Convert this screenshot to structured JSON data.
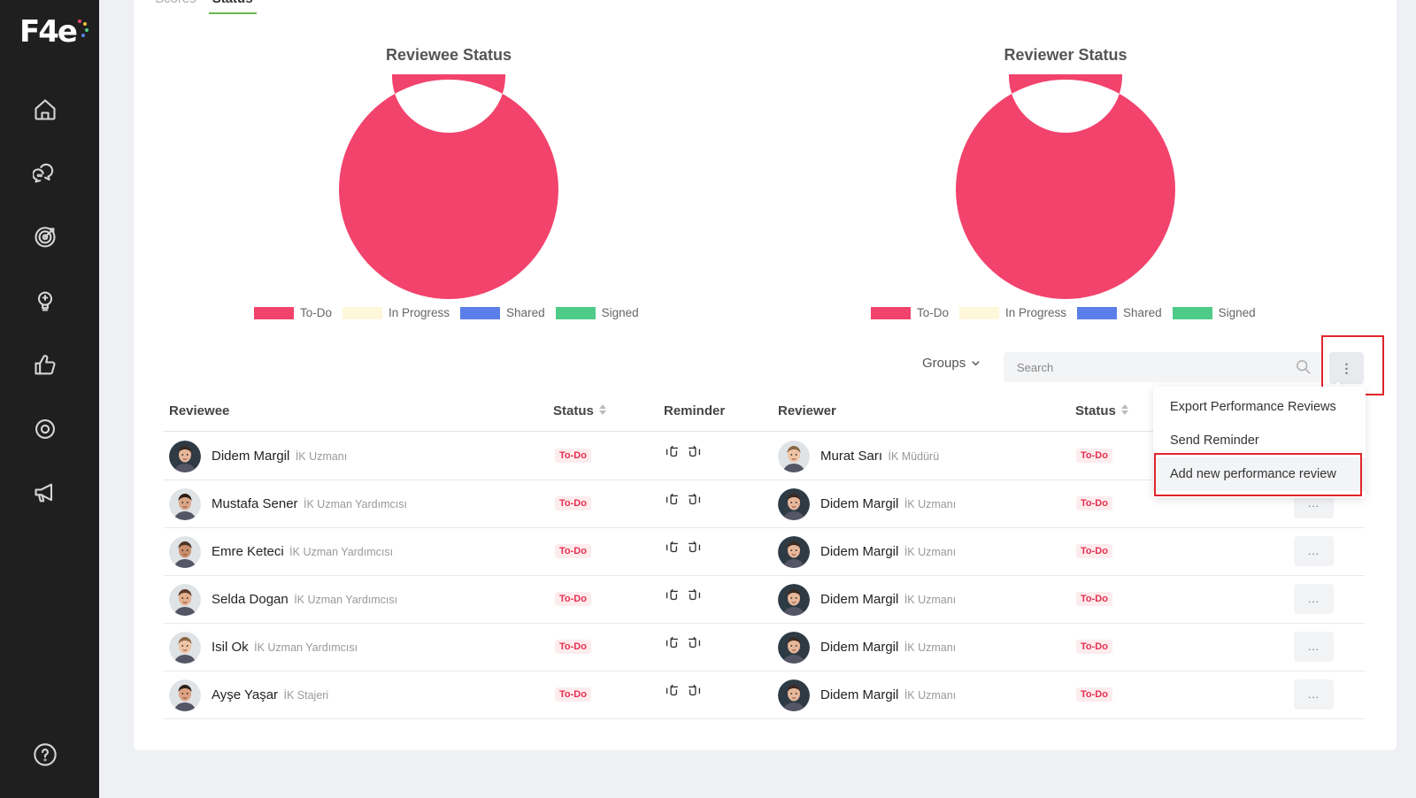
{
  "app": {
    "logo_text": "F4e"
  },
  "sidebar": {
    "items": [
      {
        "icon": "home-icon"
      },
      {
        "icon": "chat-bubbles-icon"
      },
      {
        "icon": "target-icon"
      },
      {
        "icon": "lightbulb-icon"
      },
      {
        "icon": "thumbs-up-icon"
      },
      {
        "icon": "settings-icon"
      },
      {
        "icon": "megaphone-icon"
      }
    ],
    "help_icon": "question-circle-icon"
  },
  "tabs": [
    {
      "label": "Scores",
      "active": false
    },
    {
      "label": "Status",
      "active": true
    }
  ],
  "charts": {
    "reviewee_title": "Reviewee Status",
    "reviewer_title": "Reviewer Status",
    "legend": [
      {
        "label": "To-Do",
        "color": "#f2436d"
      },
      {
        "label": "In Progress",
        "color": "#fff7d9"
      },
      {
        "label": "Shared",
        "color": "#5b7fe8"
      },
      {
        "label": "Signed",
        "color": "#4ecb86"
      }
    ]
  },
  "chart_data": [
    {
      "type": "pie",
      "title": "Reviewee Status",
      "categories": [
        "To-Do",
        "In Progress",
        "Shared",
        "Signed"
      ],
      "values": [
        6,
        0,
        0,
        0
      ]
    },
    {
      "type": "pie",
      "title": "Reviewer Status",
      "categories": [
        "To-Do",
        "In Progress",
        "Shared",
        "Signed"
      ],
      "values": [
        6,
        0,
        0,
        0
      ]
    }
  ],
  "toolbar": {
    "groups_label": "Groups",
    "search_placeholder": "Search",
    "more_label": "⋮"
  },
  "table": {
    "headers": {
      "reviewee": "Reviewee",
      "status": "Status",
      "reminder": "Reminder",
      "reviewer": "Reviewer",
      "status2": "Status"
    },
    "rows": [
      {
        "reviewee": "Didem Margil",
        "reviewee_role": "İK Uzmanı",
        "status": "To-Do",
        "reviewer": "Murat Sarı",
        "reviewer_role": "İK Müdürü",
        "reviewer_status": "To-Do",
        "more": "..."
      },
      {
        "reviewee": "Mustafa Sener",
        "reviewee_role": "İK Uzman Yardımcısı",
        "status": "To-Do",
        "reviewer": "Didem Margil",
        "reviewer_role": "İK Uzmanı",
        "reviewer_status": "To-Do",
        "more": "..."
      },
      {
        "reviewee": "Emre Keteci",
        "reviewee_role": "İK Uzman Yardımcısı",
        "status": "To-Do",
        "reviewer": "Didem Margil",
        "reviewer_role": "İK Uzmanı",
        "reviewer_status": "To-Do",
        "more": "..."
      },
      {
        "reviewee": "Selda Dogan",
        "reviewee_role": "İK Uzman Yardımcısı",
        "status": "To-Do",
        "reviewer": "Didem Margil",
        "reviewer_role": "İK Uzmanı",
        "reviewer_status": "To-Do",
        "more": "..."
      },
      {
        "reviewee": "Isil Ok",
        "reviewee_role": "İK Uzman Yardımcısı",
        "status": "To-Do",
        "reviewer": "Didem Margil",
        "reviewer_role": "İK Uzmanı",
        "reviewer_status": "To-Do",
        "more": "..."
      },
      {
        "reviewee": "Ayşe Yaşar",
        "reviewee_role": "İK Stajeri",
        "status": "To-Do",
        "reviewer": "Didem Margil",
        "reviewer_role": "İK Uzmanı",
        "reviewer_status": "To-Do",
        "more": "..."
      }
    ]
  },
  "menu": {
    "items": [
      "Export Performance Reviews",
      "Send Reminder",
      "Add new performance review"
    ]
  }
}
